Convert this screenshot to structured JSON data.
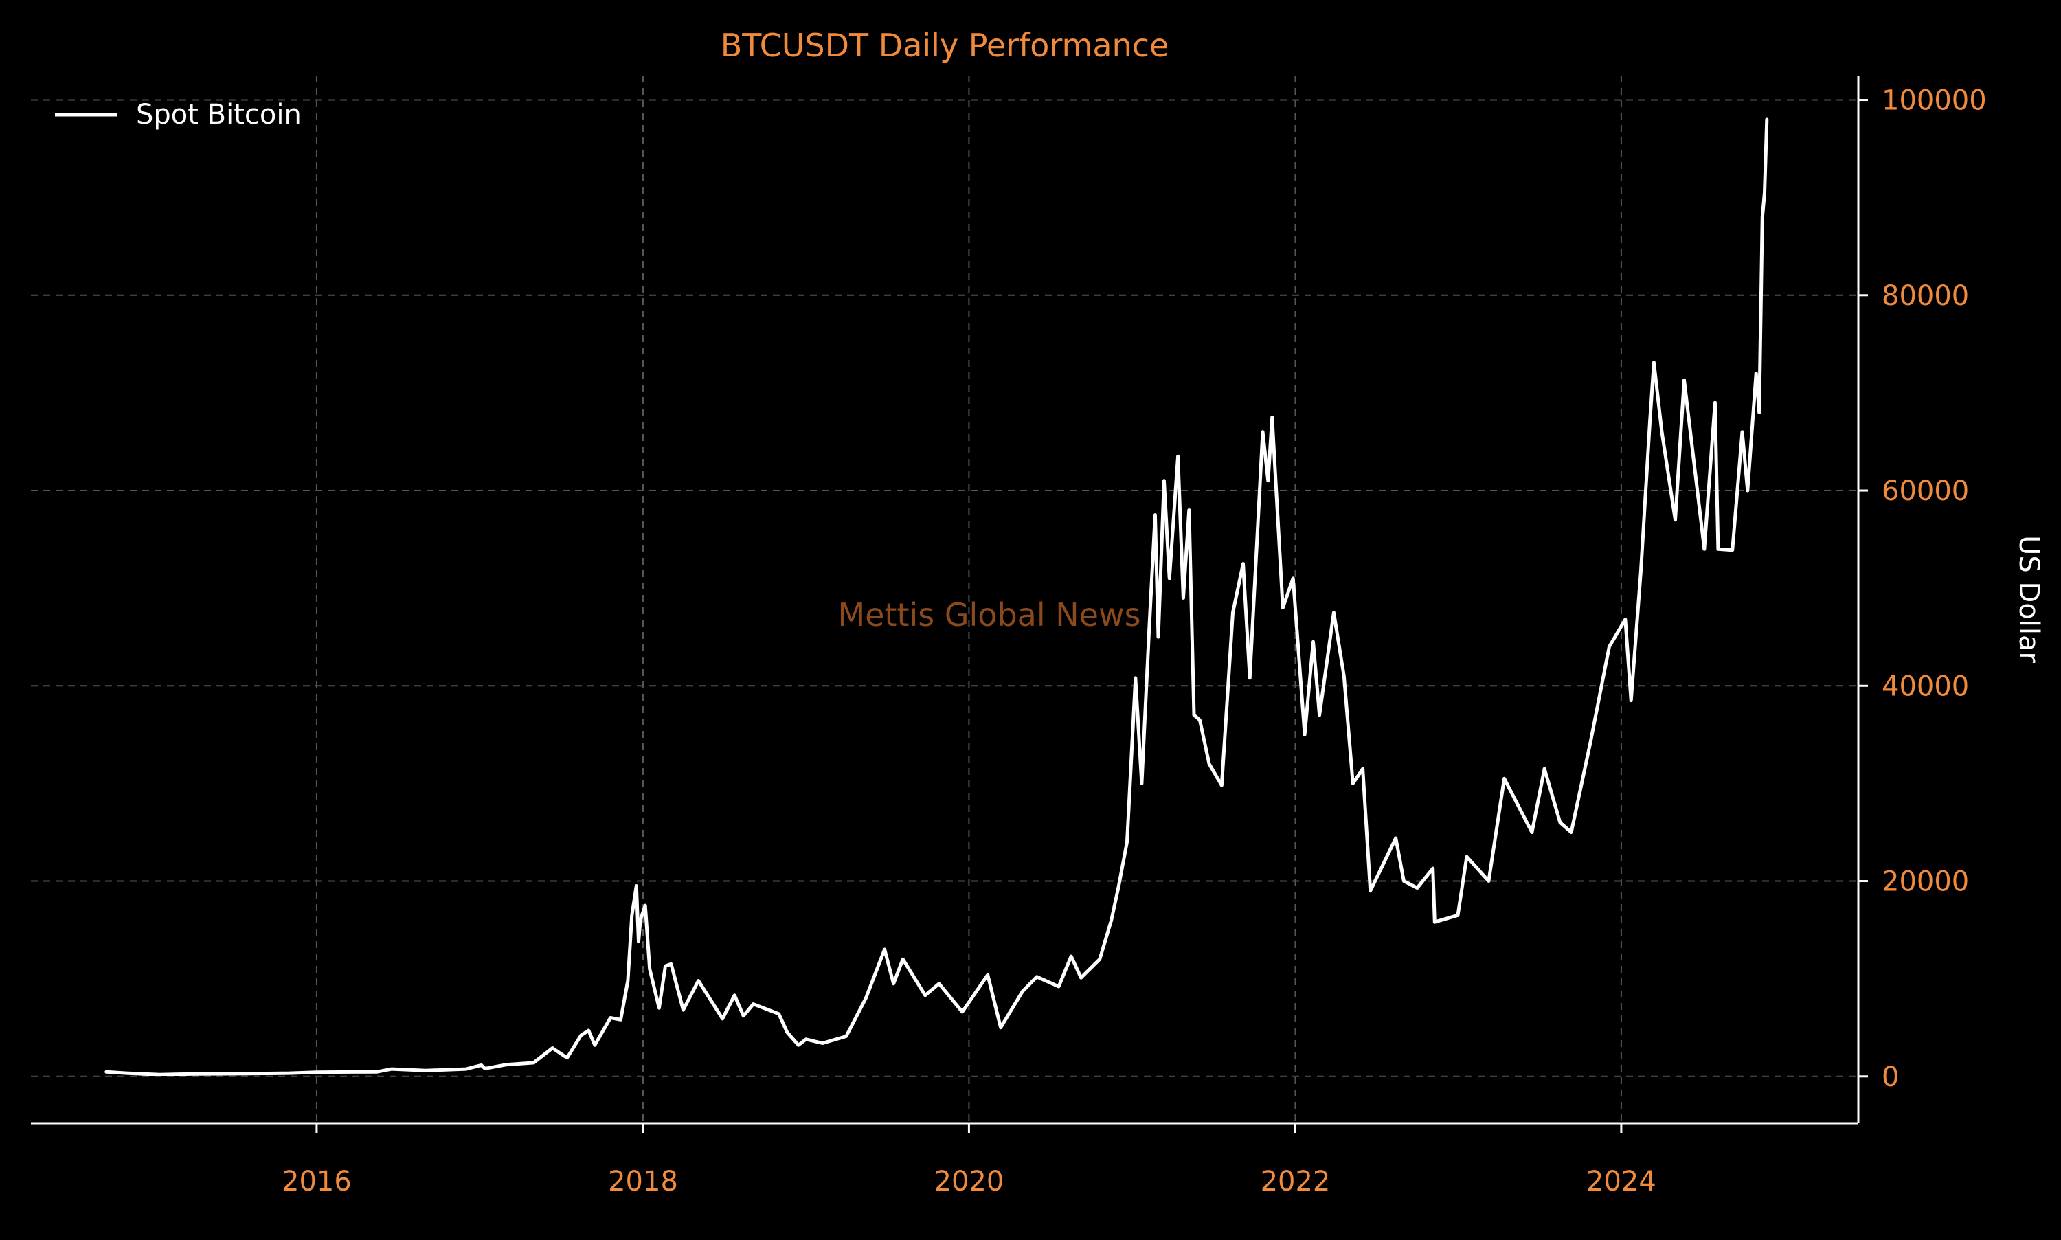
{
  "chart_data": {
    "type": "line",
    "title": "BTCUSDT Daily Performance",
    "xlabel": "",
    "ylabel": "US Dollar",
    "watermark": "Mettis Global News",
    "x_axis": {
      "kind": "date",
      "range": [
        "2014-04-01",
        "2025-06-15"
      ],
      "ticks": [
        "2016",
        "2018",
        "2020",
        "2022",
        "2024"
      ],
      "tick_dates": [
        "2016-01-01",
        "2018-01-01",
        "2020-01-01",
        "2022-01-01",
        "2024-01-01"
      ]
    },
    "y_axis": {
      "position": "right",
      "range": [
        -4800,
        102500
      ],
      "ticks": [
        "0",
        "20000",
        "40000",
        "60000",
        "80000",
        "100000"
      ],
      "tick_values": [
        0,
        20000,
        40000,
        60000,
        80000,
        100000
      ]
    },
    "grid": true,
    "grid_style": "dashed",
    "legend": {
      "position": "top-left"
    },
    "colors": {
      "background": "#000000",
      "series": "#ffffff",
      "accent_text": "#f08a3c",
      "label_text": "#ffffff",
      "grid": "#555555",
      "watermark": "#8b4a1e"
    },
    "series": [
      {
        "name": "Spot Bitcoin",
        "points": [
          [
            "2014-09-17",
            457
          ],
          [
            "2014-11-01",
            330
          ],
          [
            "2015-01-14",
            180
          ],
          [
            "2015-04-01",
            250
          ],
          [
            "2015-08-01",
            280
          ],
          [
            "2015-11-01",
            330
          ],
          [
            "2016-01-01",
            430
          ],
          [
            "2016-05-15",
            460
          ],
          [
            "2016-06-17",
            750
          ],
          [
            "2016-09-01",
            600
          ],
          [
            "2016-12-01",
            750
          ],
          [
            "2017-01-04",
            1150
          ],
          [
            "2017-01-12",
            800
          ],
          [
            "2017-03-01",
            1200
          ],
          [
            "2017-05-01",
            1400
          ],
          [
            "2017-06-12",
            2900
          ],
          [
            "2017-07-15",
            1900
          ],
          [
            "2017-08-15",
            4200
          ],
          [
            "2017-09-01",
            4700
          ],
          [
            "2017-09-15",
            3200
          ],
          [
            "2017-10-20",
            6000
          ],
          [
            "2017-11-12",
            5800
          ],
          [
            "2017-11-28",
            9800
          ],
          [
            "2017-12-07",
            16500
          ],
          [
            "2017-12-17",
            19500
          ],
          [
            "2017-12-22",
            13800
          ],
          [
            "2017-12-26",
            16000
          ],
          [
            "2018-01-06",
            17500
          ],
          [
            "2018-01-16",
            11000
          ],
          [
            "2018-02-06",
            7000
          ],
          [
            "2018-02-20",
            11300
          ],
          [
            "2018-03-05",
            11500
          ],
          [
            "2018-04-01",
            6800
          ],
          [
            "2018-05-05",
            9800
          ],
          [
            "2018-06-28",
            5900
          ],
          [
            "2018-07-25",
            8300
          ],
          [
            "2018-08-14",
            6200
          ],
          [
            "2018-09-05",
            7400
          ],
          [
            "2018-11-01",
            6400
          ],
          [
            "2018-11-20",
            4500
          ],
          [
            "2018-12-15",
            3200
          ],
          [
            "2019-01-01",
            3800
          ],
          [
            "2019-02-07",
            3400
          ],
          [
            "2019-04-01",
            4100
          ],
          [
            "2019-05-15",
            8000
          ],
          [
            "2019-06-26",
            13000
          ],
          [
            "2019-07-16",
            9500
          ],
          [
            "2019-08-06",
            12000
          ],
          [
            "2019-09-25",
            8300
          ],
          [
            "2019-10-26",
            9500
          ],
          [
            "2019-12-17",
            6600
          ],
          [
            "2020-02-12",
            10400
          ],
          [
            "2020-03-12",
            5000
          ],
          [
            "2020-04-30",
            8700
          ],
          [
            "2020-06-01",
            10200
          ],
          [
            "2020-07-20",
            9200
          ],
          [
            "2020-08-17",
            12300
          ],
          [
            "2020-09-08",
            10100
          ],
          [
            "2020-10-20",
            12000
          ],
          [
            "2020-11-15",
            16000
          ],
          [
            "2020-12-01",
            19400
          ],
          [
            "2020-12-20",
            24000
          ],
          [
            "2021-01-08",
            40800
          ],
          [
            "2021-01-22",
            30000
          ],
          [
            "2021-02-08",
            46200
          ],
          [
            "2021-02-21",
            57500
          ],
          [
            "2021-02-28",
            45000
          ],
          [
            "2021-03-13",
            61000
          ],
          [
            "2021-03-25",
            51000
          ],
          [
            "2021-04-13",
            63500
          ],
          [
            "2021-04-25",
            49000
          ],
          [
            "2021-05-08",
            58000
          ],
          [
            "2021-05-19",
            37000
          ],
          [
            "2021-06-01",
            36500
          ],
          [
            "2021-06-22",
            32000
          ],
          [
            "2021-07-20",
            29800
          ],
          [
            "2021-08-14",
            47500
          ],
          [
            "2021-09-06",
            52500
          ],
          [
            "2021-09-21",
            40800
          ],
          [
            "2021-10-20",
            66000
          ],
          [
            "2021-11-01",
            61000
          ],
          [
            "2021-11-10",
            67500
          ],
          [
            "2021-12-04",
            48000
          ],
          [
            "2021-12-27",
            51000
          ],
          [
            "2022-01-22",
            35000
          ],
          [
            "2022-02-10",
            44500
          ],
          [
            "2022-02-24",
            37000
          ],
          [
            "2022-03-28",
            47500
          ],
          [
            "2022-04-20",
            41000
          ],
          [
            "2022-05-10",
            30000
          ],
          [
            "2022-06-01",
            31500
          ],
          [
            "2022-06-18",
            19000
          ],
          [
            "2022-08-14",
            24400
          ],
          [
            "2022-09-01",
            20000
          ],
          [
            "2022-10-01",
            19300
          ],
          [
            "2022-11-05",
            21300
          ],
          [
            "2022-11-09",
            15800
          ],
          [
            "2022-12-31",
            16500
          ],
          [
            "2023-01-20",
            22500
          ],
          [
            "2023-03-10",
            20000
          ],
          [
            "2023-04-14",
            30500
          ],
          [
            "2023-06-15",
            25000
          ],
          [
            "2023-07-13",
            31500
          ],
          [
            "2023-08-17",
            26000
          ],
          [
            "2023-09-11",
            25000
          ],
          [
            "2023-10-23",
            34000
          ],
          [
            "2023-12-05",
            44000
          ],
          [
            "2024-01-10",
            46800
          ],
          [
            "2024-01-23",
            38500
          ],
          [
            "2024-02-14",
            51800
          ],
          [
            "2024-03-05",
            67000
          ],
          [
            "2024-03-14",
            73100
          ],
          [
            "2024-04-01",
            66000
          ],
          [
            "2024-05-01",
            57000
          ],
          [
            "2024-05-21",
            71300
          ],
          [
            "2024-07-05",
            54000
          ],
          [
            "2024-07-29",
            69000
          ],
          [
            "2024-08-05",
            54000
          ],
          [
            "2024-09-06",
            53900
          ],
          [
            "2024-09-28",
            66000
          ],
          [
            "2024-10-10",
            60000
          ],
          [
            "2024-10-29",
            72000
          ],
          [
            "2024-11-05",
            68000
          ],
          [
            "2024-11-12",
            88000
          ],
          [
            "2024-11-17",
            90500
          ],
          [
            "2024-11-22",
            98000
          ]
        ]
      }
    ]
  }
}
